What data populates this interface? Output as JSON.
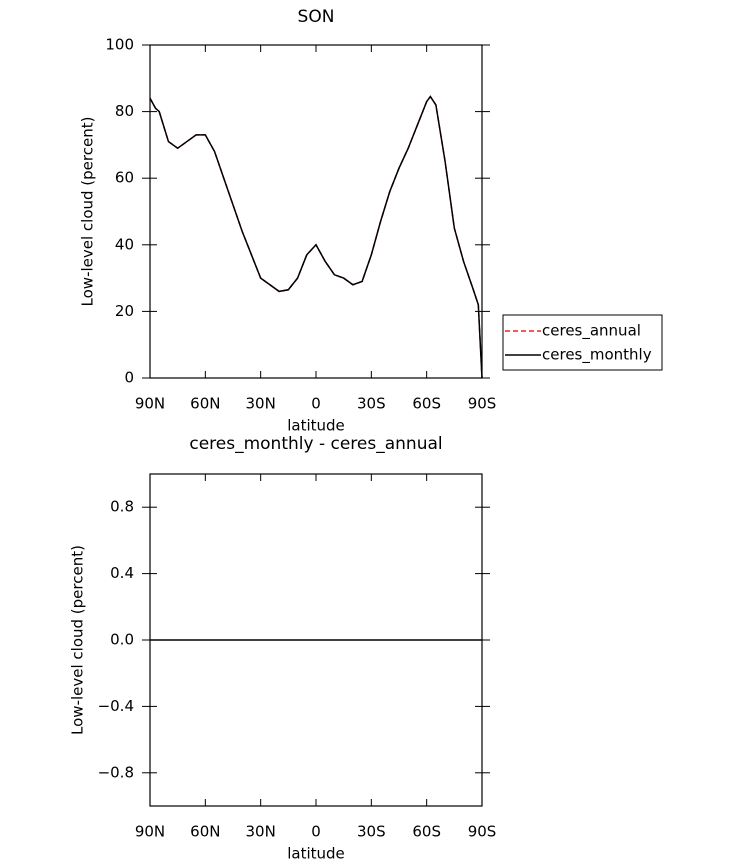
{
  "chart_data": [
    {
      "type": "line",
      "title": "SON",
      "x_label": "latitude",
      "y_label": "Low-level cloud (percent)",
      "x": [
        90,
        87,
        85,
        80,
        75,
        70,
        65,
        60,
        55,
        50,
        45,
        40,
        35,
        30,
        25,
        20,
        15,
        10,
        5,
        0,
        -5,
        -10,
        -15,
        -20,
        -25,
        -30,
        -35,
        -40,
        -45,
        -50,
        -55,
        -60,
        -62,
        -65,
        -70,
        -75,
        -80,
        -85,
        -88,
        -90
      ],
      "series": [
        {
          "name": "ceres_annual",
          "color": "#e8272a",
          "dash": true,
          "values": [
            84,
            81,
            80,
            71,
            69,
            71,
            73,
            73,
            68,
            60,
            52,
            44,
            37,
            30,
            28,
            26,
            26.5,
            30,
            37,
            40,
            35,
            31,
            30,
            28,
            29,
            37,
            47,
            56,
            63,
            69,
            76,
            83,
            84.5,
            82,
            65,
            45,
            35,
            27,
            22,
            0
          ]
        },
        {
          "name": "ceres_monthly",
          "color": "#000000",
          "dash": false,
          "values": [
            84,
            81,
            80,
            71,
            69,
            71,
            73,
            73,
            68,
            60,
            52,
            44,
            37,
            30,
            28,
            26,
            26.5,
            30,
            37,
            40,
            35,
            31,
            30,
            28,
            29,
            37,
            47,
            56,
            63,
            69,
            76,
            83,
            84.5,
            82,
            65,
            45,
            35,
            27,
            22,
            0
          ]
        }
      ],
      "xlim": [
        90,
        -90
      ],
      "xticks": [
        {
          "value": 90,
          "label": "90N"
        },
        {
          "value": 60,
          "label": "60N"
        },
        {
          "value": 30,
          "label": "30N"
        },
        0,
        {
          "value": -30,
          "label": "30S"
        },
        {
          "value": -60,
          "label": "60S"
        },
        {
          "value": -90,
          "label": "90S"
        }
      ],
      "ylim": [
        0,
        100
      ],
      "yticks": [
        0,
        20,
        40,
        60,
        80,
        100
      ],
      "legend": "right"
    },
    {
      "type": "line",
      "title": "ceres_monthly - ceres_annual",
      "x_label": "latitude",
      "y_label": "Low-level cloud (percent)",
      "x": [
        90,
        -90
      ],
      "values": [
        0,
        0
      ],
      "color": "#000000",
      "xlim": [
        90,
        -90
      ],
      "xticks": [
        {
          "value": 90,
          "label": "90N"
        },
        {
          "value": 60,
          "label": "60N"
        },
        {
          "value": 30,
          "label": "30N"
        },
        0,
        {
          "value": -30,
          "label": "30S"
        },
        {
          "value": -60,
          "label": "60S"
        },
        {
          "value": -90,
          "label": "90S"
        }
      ],
      "ylim": [
        -1,
        1
      ],
      "yticks": [
        {
          "value": -0.8,
          "label": "−0.8"
        },
        {
          "value": -0.4,
          "label": "−0.4"
        },
        {
          "value": 0,
          "label": "0.0"
        },
        {
          "value": 0.4,
          "label": "0.4"
        },
        {
          "value": 0.8,
          "label": "0.8"
        }
      ]
    }
  ]
}
